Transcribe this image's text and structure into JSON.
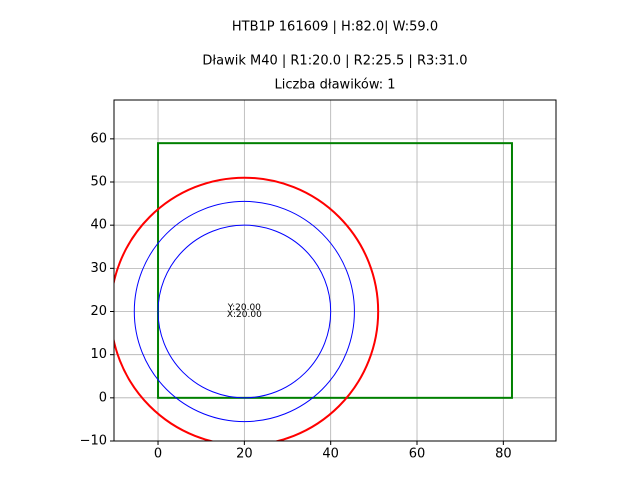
{
  "chart_data": {
    "type": "shapes",
    "title": "HTB1P 161609 | H:82.0| W:59.0",
    "subtitle": "Dławik M40 | R1:20.0 | R2:25.5 | R3:31.0",
    "caption": "Liczba dławików: 1",
    "xlim": [
      -10.2,
      92.2
    ],
    "ylim": [
      -10,
      69
    ],
    "xticks": [
      0,
      20,
      40,
      60,
      80
    ],
    "yticks": [
      {
        "value": -10,
        "label": "−10"
      },
      0,
      10,
      20,
      30,
      40,
      50,
      60
    ],
    "grid": true,
    "rectangle": {
      "x": 0,
      "y": 0,
      "width": 82,
      "height": 59,
      "color": "#008000"
    },
    "circles": [
      {
        "center_x": 20,
        "center_y": 20,
        "radius": 20,
        "color": "#0000ff"
      },
      {
        "center_x": 20,
        "center_y": 20,
        "radius": 25.5,
        "color": "#0000ff"
      },
      {
        "center_x": 20,
        "center_y": 20,
        "radius": 31,
        "color": "#ff0000"
      }
    ],
    "annotations": [
      {
        "text": "Y:20.00",
        "x": 20,
        "y": 20
      },
      {
        "text": "X:20.00",
        "x": 20,
        "y": 20
      }
    ]
  }
}
